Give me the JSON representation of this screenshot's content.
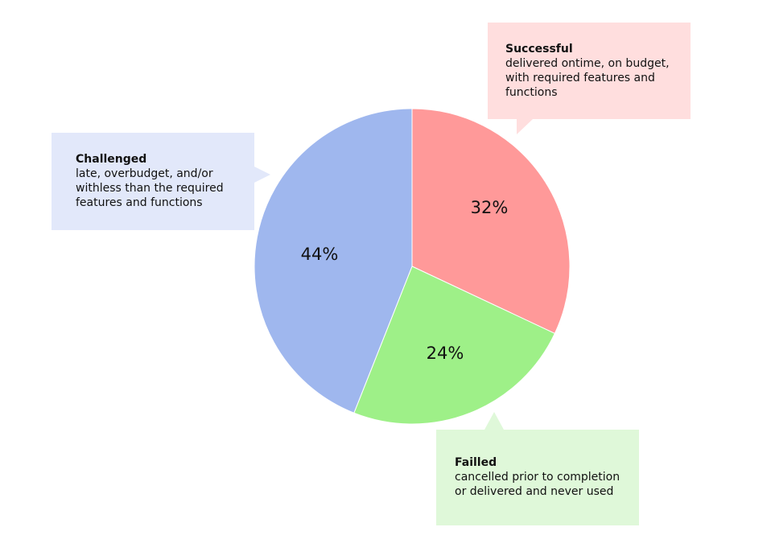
{
  "chart_data": {
    "type": "pie",
    "slices": [
      {
        "key": "successful",
        "label": "Successful",
        "value": 32,
        "value_label": "32%",
        "color": "#ff9999",
        "description": "delivered ontime, on budget,\nwith required features and\nfunctions",
        "callout_color": "#ffdede"
      },
      {
        "key": "failed",
        "label": "Failled",
        "value": 24,
        "value_label": "24%",
        "color": "#9ef088",
        "description": "cancelled prior to completion\nor delivered and never used",
        "callout_color": "#dff8d9"
      },
      {
        "key": "challenged",
        "label": "Challenged",
        "value": 44,
        "value_label": "44%",
        "color": "#9fb7ee",
        "description": "late, overbudget, and/or\nwithless than the required\nfeatures and functions",
        "callout_color": "#e2e8fa"
      }
    ],
    "start_angle_deg": 0,
    "direction": "clockwise",
    "legend": "callouts"
  }
}
